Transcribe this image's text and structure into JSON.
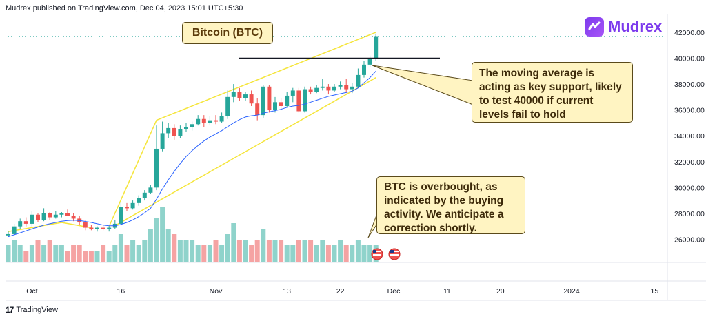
{
  "header": {
    "published": "Mudrex published on TradingView.com, Dec 04, 2023 15:01 UTC+5:30"
  },
  "brand": {
    "name": "Mudrex",
    "color": "#7c3aed"
  },
  "footer": {
    "label": "TradingView"
  },
  "callouts": {
    "title": "Bitcoin (BTC)",
    "note1": "The moving average is acting as key support, likely to test 40000 if current levels fail to hold",
    "note2": "BTC is overbought, as indicated by the buying activity. We anticipate a correction shortly."
  },
  "colors": {
    "up": "#26a69a",
    "down": "#ef5350",
    "ma": "#2962ff",
    "channel": "#f5e53a",
    "volume_up": "#8fd3cb",
    "volume_down": "#f5a3a3"
  },
  "chart_data": {
    "type": "candlestick",
    "title": "Bitcoin (BTC)",
    "yticks": [
      "42000.00",
      "40000.00",
      "38000.00",
      "36000.00",
      "34000.00",
      "32000.00",
      "30000.00",
      "28000.00",
      "26000.00"
    ],
    "xticks": [
      {
        "label": "Oct",
        "i": 4
      },
      {
        "label": "16",
        "i": 19
      },
      {
        "label": "Nov",
        "i": 35
      },
      {
        "label": "13",
        "i": 47
      },
      {
        "label": "22",
        "i": 56
      },
      {
        "label": "Dec",
        "i": 65
      },
      {
        "label": "11",
        "i": 74
      },
      {
        "label": "20",
        "i": 83
      },
      {
        "label": "2024",
        "i": 95
      },
      {
        "label": "15",
        "i": 109
      }
    ],
    "ylim": [
      24800,
      42900
    ],
    "support_level": 40000,
    "candles": [
      {
        "o": 26300,
        "h": 26600,
        "l": 26200,
        "c": 26400
      },
      {
        "o": 26400,
        "h": 27200,
        "l": 26300,
        "c": 27000
      },
      {
        "o": 27000,
        "h": 27600,
        "l": 26800,
        "c": 27400
      },
      {
        "o": 27400,
        "h": 27700,
        "l": 27000,
        "c": 27200
      },
      {
        "o": 27200,
        "h": 28200,
        "l": 27000,
        "c": 27900
      },
      {
        "o": 27900,
        "h": 28000,
        "l": 27300,
        "c": 27500
      },
      {
        "o": 27500,
        "h": 28400,
        "l": 27400,
        "c": 28000
      },
      {
        "o": 28000,
        "h": 28100,
        "l": 27500,
        "c": 27700
      },
      {
        "o": 27700,
        "h": 28200,
        "l": 27600,
        "c": 27900
      },
      {
        "o": 27900,
        "h": 28100,
        "l": 27700,
        "c": 28000
      },
      {
        "o": 28000,
        "h": 28300,
        "l": 27800,
        "c": 27800
      },
      {
        "o": 27800,
        "h": 28000,
        "l": 27400,
        "c": 27600
      },
      {
        "o": 27600,
        "h": 27800,
        "l": 27100,
        "c": 27300
      },
      {
        "o": 27300,
        "h": 27500,
        "l": 26700,
        "c": 26900
      },
      {
        "o": 26900,
        "h": 27100,
        "l": 26700,
        "c": 26800
      },
      {
        "o": 26800,
        "h": 27000,
        "l": 26600,
        "c": 26900
      },
      {
        "o": 26900,
        "h": 27100,
        "l": 26700,
        "c": 26800
      },
      {
        "o": 26800,
        "h": 27000,
        "l": 26600,
        "c": 26900
      },
      {
        "o": 26900,
        "h": 27500,
        "l": 26800,
        "c": 27200
      },
      {
        "o": 27200,
        "h": 28900,
        "l": 27100,
        "c": 28500
      },
      {
        "o": 28500,
        "h": 28800,
        "l": 28200,
        "c": 28400
      },
      {
        "o": 28400,
        "h": 29000,
        "l": 28300,
        "c": 28800
      },
      {
        "o": 28800,
        "h": 29400,
        "l": 28600,
        "c": 29200
      },
      {
        "o": 29200,
        "h": 29800,
        "l": 29000,
        "c": 29600
      },
      {
        "o": 29600,
        "h": 30200,
        "l": 29500,
        "c": 30000
      },
      {
        "o": 30000,
        "h": 34800,
        "l": 29800,
        "c": 33000
      },
      {
        "o": 33000,
        "h": 35100,
        "l": 32800,
        "c": 34200
      },
      {
        "o": 34200,
        "h": 35000,
        "l": 33800,
        "c": 34600
      },
      {
        "o": 34600,
        "h": 34900,
        "l": 33700,
        "c": 34000
      },
      {
        "o": 34000,
        "h": 34800,
        "l": 33800,
        "c": 34500
      },
      {
        "o": 34500,
        "h": 35000,
        "l": 34300,
        "c": 34700
      },
      {
        "o": 34700,
        "h": 35100,
        "l": 34400,
        "c": 34900
      },
      {
        "o": 34900,
        "h": 35600,
        "l": 34800,
        "c": 35300
      },
      {
        "o": 35300,
        "h": 35600,
        "l": 34700,
        "c": 35000
      },
      {
        "o": 35000,
        "h": 35500,
        "l": 34800,
        "c": 35200
      },
      {
        "o": 35200,
        "h": 35600,
        "l": 34900,
        "c": 35100
      },
      {
        "o": 35100,
        "h": 35800,
        "l": 35000,
        "c": 35500
      },
      {
        "o": 35500,
        "h": 37500,
        "l": 35300,
        "c": 37000
      },
      {
        "o": 37000,
        "h": 38000,
        "l": 36600,
        "c": 37400
      },
      {
        "o": 37400,
        "h": 37700,
        "l": 36700,
        "c": 36900
      },
      {
        "o": 36900,
        "h": 37400,
        "l": 36700,
        "c": 37200
      },
      {
        "o": 37200,
        "h": 37500,
        "l": 36300,
        "c": 36500
      },
      {
        "o": 36500,
        "h": 36900,
        "l": 35200,
        "c": 35600
      },
      {
        "o": 35600,
        "h": 37900,
        "l": 35400,
        "c": 37800
      },
      {
        "o": 37800,
        "h": 37900,
        "l": 35800,
        "c": 36000
      },
      {
        "o": 36000,
        "h": 37000,
        "l": 35800,
        "c": 36600
      },
      {
        "o": 36600,
        "h": 36900,
        "l": 36000,
        "c": 36300
      },
      {
        "o": 36300,
        "h": 37400,
        "l": 36200,
        "c": 37100
      },
      {
        "o": 37100,
        "h": 37700,
        "l": 36600,
        "c": 37500
      },
      {
        "o": 37500,
        "h": 37700,
        "l": 35800,
        "c": 35900
      },
      {
        "o": 35900,
        "h": 37800,
        "l": 35800,
        "c": 37600
      },
      {
        "o": 37600,
        "h": 37800,
        "l": 37200,
        "c": 37400
      },
      {
        "o": 37400,
        "h": 37900,
        "l": 37300,
        "c": 37700
      },
      {
        "o": 37700,
        "h": 38400,
        "l": 37500,
        "c": 37800
      },
      {
        "o": 37800,
        "h": 38000,
        "l": 37200,
        "c": 37500
      },
      {
        "o": 37500,
        "h": 38000,
        "l": 37400,
        "c": 37800
      },
      {
        "o": 37800,
        "h": 38200,
        "l": 37600,
        "c": 37900
      },
      {
        "o": 37900,
        "h": 38400,
        "l": 37300,
        "c": 37600
      },
      {
        "o": 37600,
        "h": 38100,
        "l": 37300,
        "c": 37800
      },
      {
        "o": 37800,
        "h": 39200,
        "l": 37700,
        "c": 38700
      },
      {
        "o": 38700,
        "h": 39800,
        "l": 38500,
        "c": 39500
      },
      {
        "o": 39500,
        "h": 40200,
        "l": 39300,
        "c": 40000
      },
      {
        "o": 40000,
        "h": 41900,
        "l": 39800,
        "c": 41700
      }
    ],
    "ma": [
      26200,
      26350,
      26500,
      26650,
      26800,
      26950,
      27100,
      27200,
      27300,
      27400,
      27450,
      27480,
      27450,
      27380,
      27300,
      27200,
      27100,
      27050,
      27050,
      27150,
      27300,
      27500,
      27750,
      28050,
      28400,
      29100,
      29900,
      30600,
      31250,
      31850,
      32400,
      32850,
      33250,
      33600,
      33900,
      34150,
      34400,
      34700,
      35000,
      35250,
      35450,
      35550,
      35600,
      35750,
      35850,
      35950,
      36050,
      36200,
      36300,
      36350,
      36450,
      36600,
      36750,
      36900,
      37050,
      37150,
      37250,
      37350,
      37450,
      37700,
      38100,
      38500,
      39000
    ],
    "volume": [
      3,
      4,
      3,
      2,
      3,
      4,
      3,
      4,
      3,
      3,
      2,
      3,
      3,
      2,
      2,
      2,
      3,
      2,
      3,
      5,
      3,
      4,
      3,
      4,
      6,
      8,
      10,
      6,
      5,
      4,
      4,
      4,
      3,
      3,
      3,
      4,
      3,
      5,
      7,
      4,
      4,
      3,
      4,
      6,
      4,
      4,
      4,
      3,
      3,
      4,
      4,
      4,
      3,
      4,
      3,
      3,
      4,
      3,
      3,
      4,
      3,
      3,
      3
    ]
  }
}
